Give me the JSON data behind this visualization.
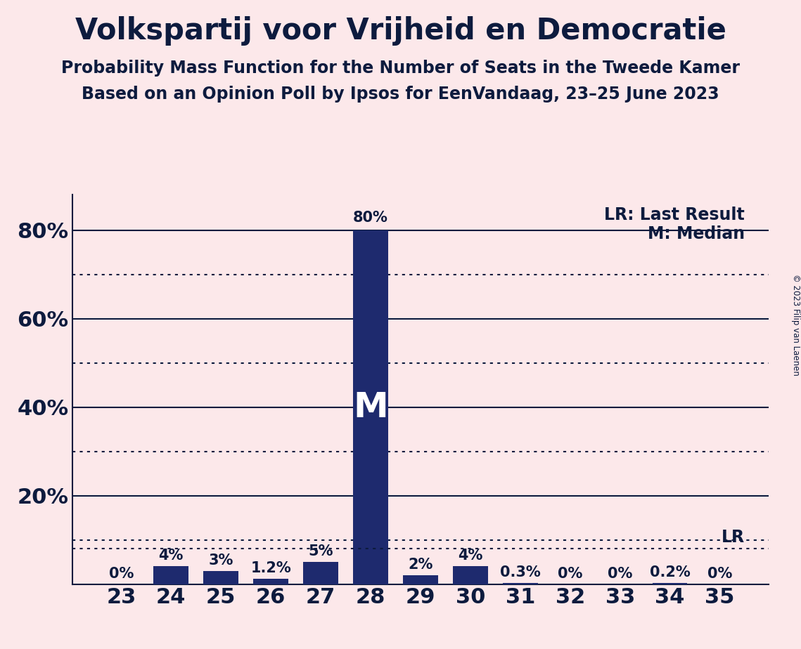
{
  "title": "Volkspartij voor Vrijheid en Democratie",
  "subtitle1": "Probability Mass Function for the Number of Seats in the Tweede Kamer",
  "subtitle2": "Based on an Opinion Poll by Ipsos for EenVandaag, 23–25 June 2023",
  "copyright": "© 2023 Filip van Laenen",
  "categories": [
    23,
    24,
    25,
    26,
    27,
    28,
    29,
    30,
    31,
    32,
    33,
    34,
    35
  ],
  "values": [
    0.0,
    4.0,
    3.0,
    1.2,
    5.0,
    80.0,
    2.0,
    4.0,
    0.3,
    0.0,
    0.0,
    0.2,
    0.0
  ],
  "labels": [
    "0%",
    "4%",
    "3%",
    "1.2%",
    "5%",
    "80%",
    "2%",
    "4%",
    "0.3%",
    "0%",
    "0%",
    "0.2%",
    "0%"
  ],
  "bar_color": "#1e2a6e",
  "background_color": "#fce8ea",
  "median_seat": 28,
  "median_label": "M",
  "lr_value": 8.0,
  "lr_label": "LR",
  "lr_legend": "LR: Last Result",
  "m_legend": "M: Median",
  "ylim": [
    0,
    88
  ],
  "yticks": [
    0,
    20,
    40,
    60,
    80
  ],
  "ytick_labels": [
    "",
    "20%",
    "40%",
    "60%",
    "80%"
  ],
  "dotted_yticks": [
    10,
    30,
    50,
    70
  ],
  "title_fontsize": 30,
  "subtitle_fontsize": 17,
  "label_fontsize": 15,
  "tick_fontsize": 22,
  "legend_fontsize": 17,
  "m_fontsize": 36
}
